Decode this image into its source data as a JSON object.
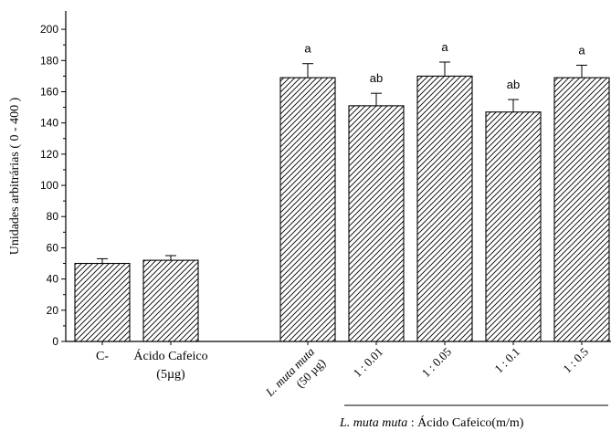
{
  "chart_data": {
    "type": "bar",
    "ylabel": "Unidades arbitrárias ( 0 - 400 )",
    "ylim": [
      0,
      210
    ],
    "yticks": [
      0,
      20,
      40,
      60,
      80,
      100,
      120,
      140,
      160,
      180,
      200
    ],
    "bar_pattern": "diagonal-hatch",
    "categories": [
      {
        "label": "C-",
        "label2": "",
        "rotated": false,
        "italic": false
      },
      {
        "label": "Ácido Cafeico",
        "label2": "(5µg)",
        "rotated": false,
        "italic": false
      },
      {
        "label": "L. muta muta",
        "label2": "(50 µg)",
        "rotated": true,
        "italic": true
      },
      {
        "label": "1 : 0.01",
        "label2": "",
        "rotated": true,
        "italic": false
      },
      {
        "label": "1 : 0.05",
        "label2": "",
        "rotated": true,
        "italic": false
      },
      {
        "label": "1 : 0.1",
        "label2": "",
        "rotated": true,
        "italic": false
      },
      {
        "label": "1 : 0.5",
        "label2": "",
        "rotated": true,
        "italic": false
      }
    ],
    "values": [
      50,
      52,
      169,
      151,
      170,
      147,
      169
    ],
    "errors": [
      3,
      3,
      9,
      8,
      9,
      8,
      8
    ],
    "annotations": [
      "",
      "",
      "a",
      "ab",
      "a",
      "ab",
      "a"
    ],
    "group_label": {
      "italic_part": "L. muta muta",
      "normal_part": ": Ácido Cafeico(m/m)"
    }
  }
}
